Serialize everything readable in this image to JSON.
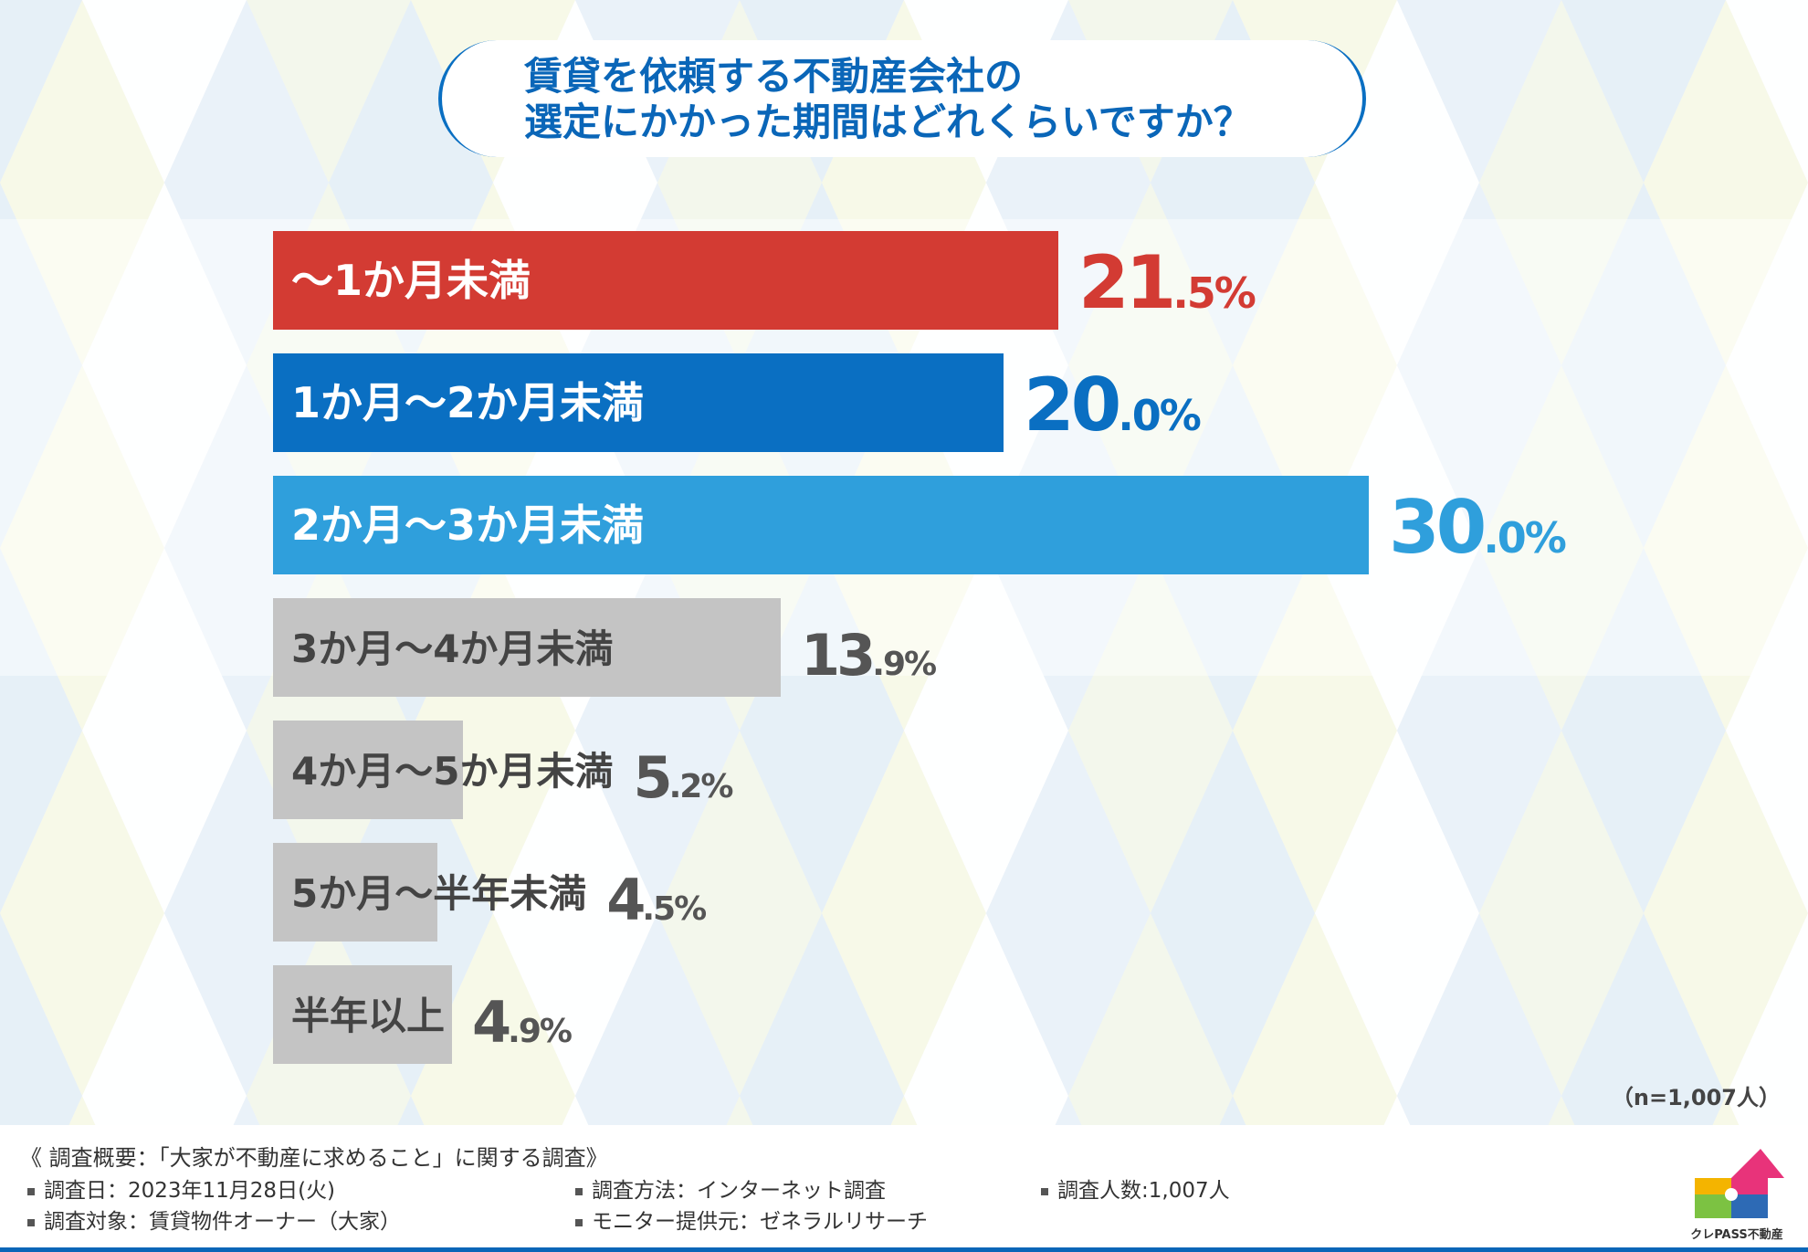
{
  "title": {
    "line1": "賃貸を依頼する不動産会社の",
    "line2": "選定にかかった期間はどれくらいですか？"
  },
  "chart_data": {
    "type": "bar",
    "orientation": "horizontal",
    "categories": [
      "〜1か月未満",
      "1か月〜2か月未満",
      "2か月〜3か月未満",
      "3か月〜4か月未満",
      "4か月〜5か月未満",
      "5か月〜半年未満",
      "半年以上"
    ],
    "values": [
      21.5,
      20.0,
      30.0,
      13.9,
      5.2,
      4.5,
      4.9
    ],
    "unit": "%",
    "xlim": [
      0,
      30
    ],
    "colors": [
      "#d33b33",
      "#0a6fc2",
      "#2f9fdc",
      "#c4c4c4",
      "#c4c4c4",
      "#c4c4c4",
      "#c4c4c4"
    ],
    "label_colors": [
      "#ffffff",
      "#ffffff",
      "#ffffff",
      "#444444",
      "#444444",
      "#444444",
      "#444444"
    ],
    "value_colors": [
      "#d33b33",
      "#0a6fc2",
      "#2f9fdc",
      "#555555",
      "#555555",
      "#555555",
      "#555555"
    ],
    "title": "賃貸を依頼する不動産会社の選定にかかった期間はどれくらいですか？"
  },
  "n_note": "（n=1,007人）",
  "footer": {
    "survey_title": "《 調査概要：「大家が不動産に求めること」に関する調査》",
    "date": "調査日：2023年11月28日(火)",
    "method": "調査方法：インターネット調査",
    "count": "調査人数:1,007人",
    "target": "調査対象：賃貸物件オーナー（大家）",
    "provider": "モニター提供元：ゼネラルリサーチ"
  },
  "logo": {
    "text": "クレPASS不動産",
    "icon": "puzzle-house-logo"
  }
}
